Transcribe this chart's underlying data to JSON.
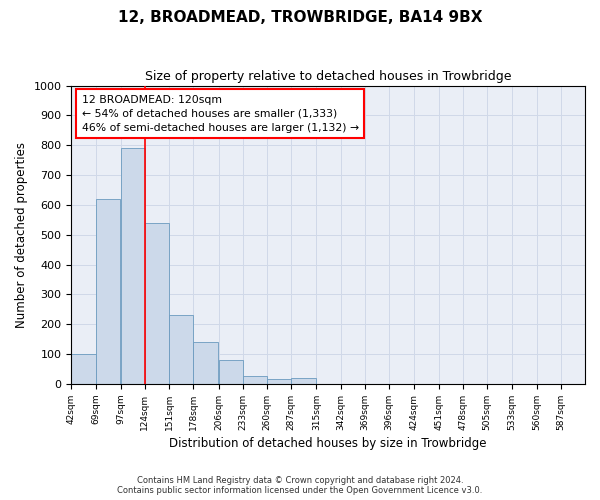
{
  "title": "12, BROADMEAD, TROWBRIDGE, BA14 9BX",
  "subtitle": "Size of property relative to detached houses in Trowbridge",
  "xlabel": "Distribution of detached houses by size in Trowbridge",
  "ylabel": "Number of detached properties",
  "footer_line1": "Contains HM Land Registry data © Crown copyright and database right 2024.",
  "footer_line2": "Contains public sector information licensed under the Open Government Licence v3.0.",
  "bar_color": "#ccd9ea",
  "bar_edge_color": "#6a9abf",
  "red_line_x": 124,
  "annotation_text": "12 BROADMEAD: 120sqm\n← 54% of detached houses are smaller (1,333)\n46% of semi-detached houses are larger (1,132) →",
  "bins": [
    42,
    69,
    97,
    124,
    151,
    178,
    206,
    233,
    260,
    287,
    315,
    342,
    369,
    396,
    424,
    451,
    478,
    505,
    533,
    560,
    587
  ],
  "values": [
    100,
    620,
    790,
    540,
    230,
    140,
    80,
    25,
    15,
    20,
    0,
    0,
    0,
    0,
    0,
    0,
    0,
    0,
    0,
    0
  ],
  "ylim": [
    0,
    1000
  ],
  "yticks": [
    0,
    100,
    200,
    300,
    400,
    500,
    600,
    700,
    800,
    900,
    1000
  ],
  "grid_color": "#d0d8e8",
  "background_color": "#eaeef6"
}
